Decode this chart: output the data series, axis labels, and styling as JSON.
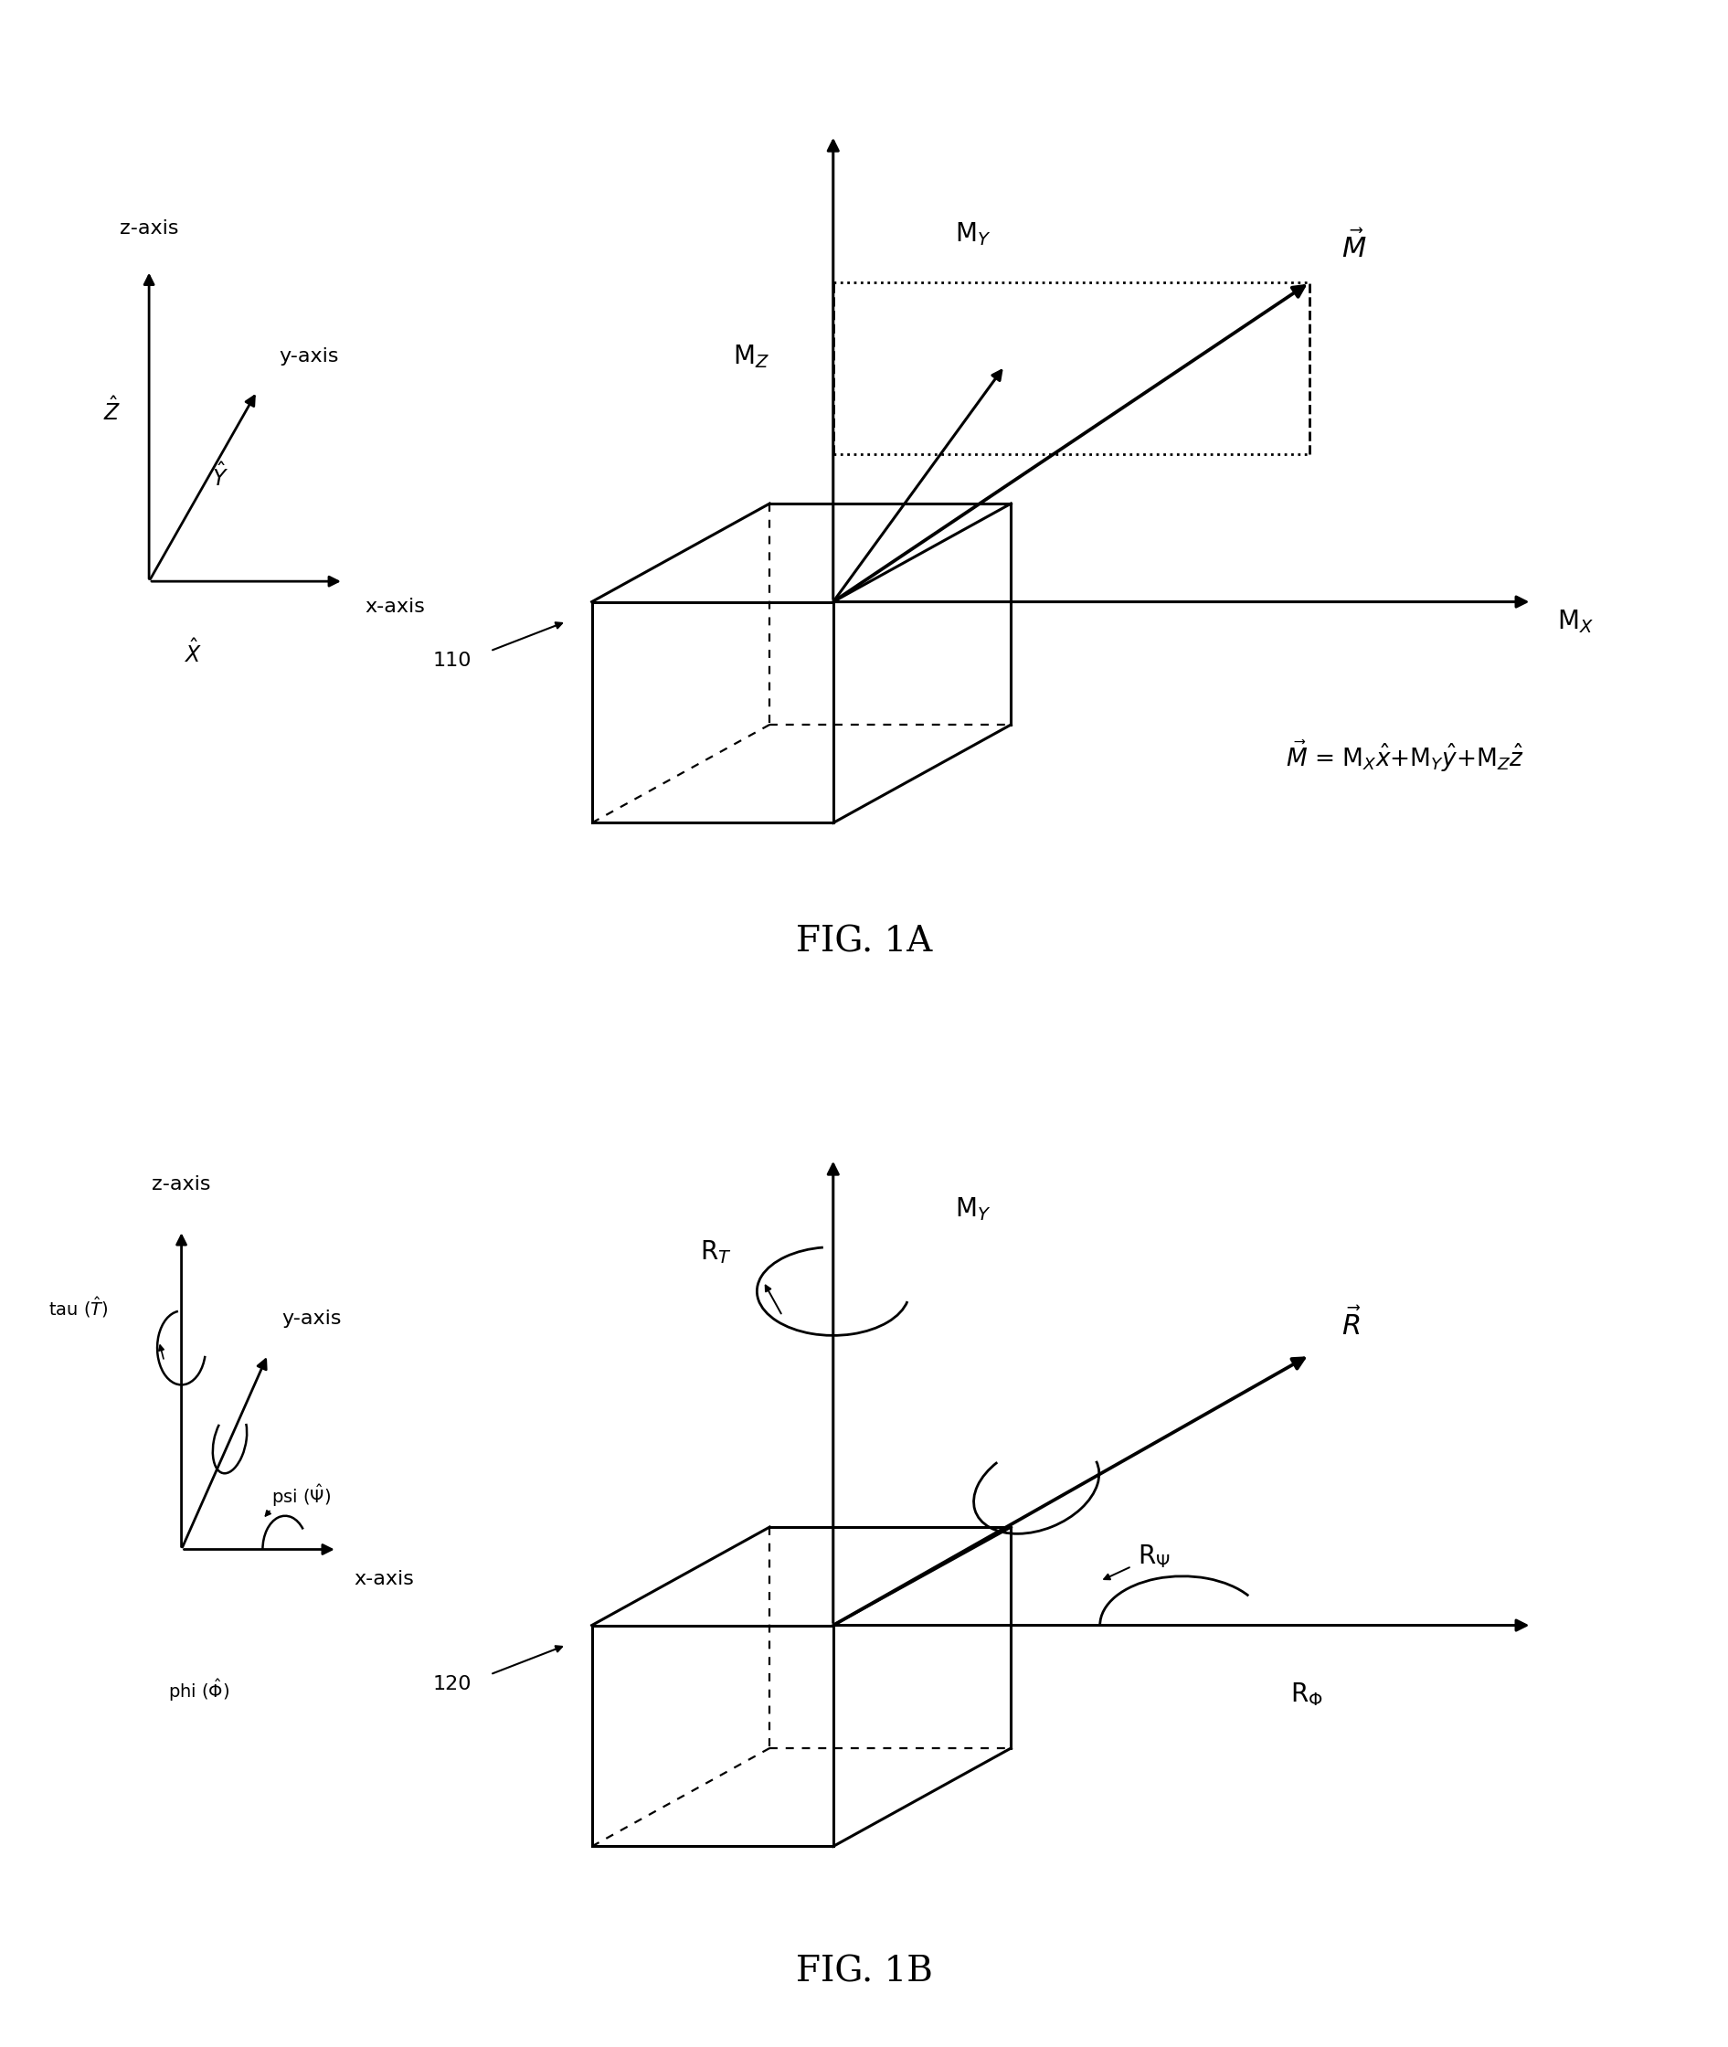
{
  "bg_color": "#ffffff",
  "fig_width": 18.91,
  "fig_height": 22.4,
  "fig_label_A": "FIG. 1A",
  "fig_label_B": "FIG. 1B",
  "label_110": "110",
  "label_120": "120",
  "fontsize_axis": 16,
  "fontsize_label": 20,
  "fontsize_fig": 28
}
